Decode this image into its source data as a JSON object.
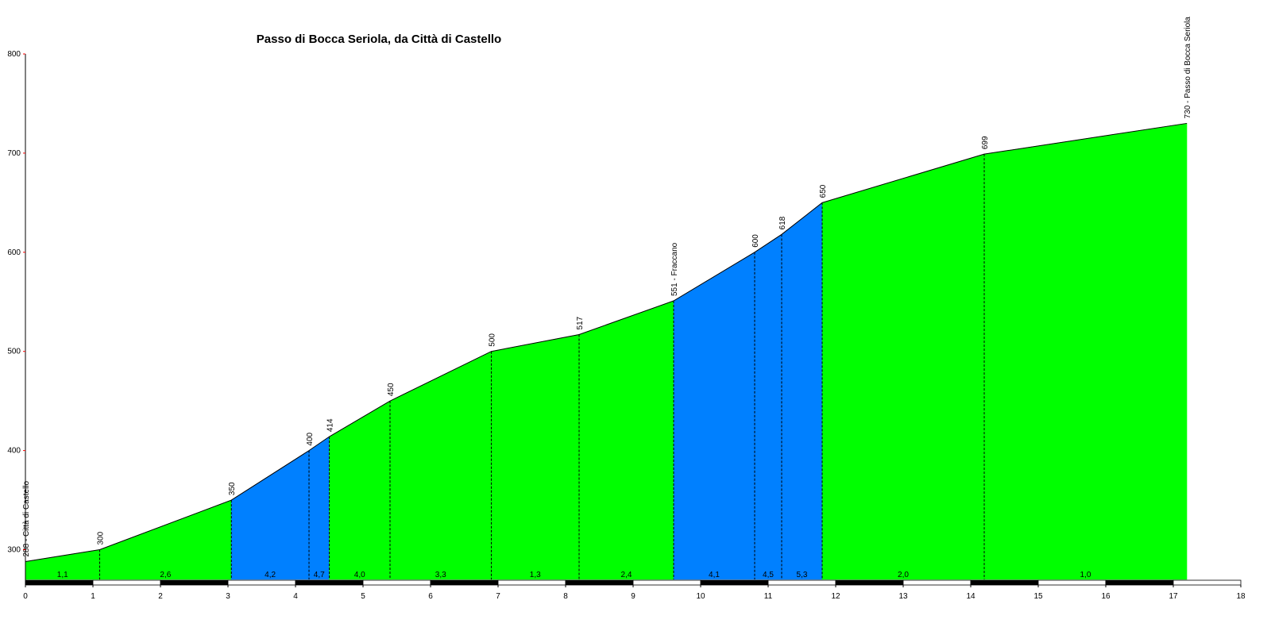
{
  "chart_data": {
    "type": "area",
    "title": "Passo di Bocca Seriola, da Città di Castello",
    "xlabel": "",
    "ylabel": "",
    "xlim": [
      0,
      18
    ],
    "ylim": [
      270,
      800
    ],
    "x_ticks": [
      0,
      1,
      2,
      3,
      4,
      5,
      6,
      7,
      8,
      9,
      10,
      11,
      12,
      13,
      14,
      15,
      16,
      17,
      18
    ],
    "y_ticks": [
      300,
      400,
      500,
      600,
      700,
      800
    ],
    "x_tick_labels": [
      "0",
      "1",
      "2",
      "3",
      "4",
      "5",
      "6",
      "7",
      "8",
      "9",
      "10",
      "11",
      "12",
      "13",
      "14",
      "15",
      "16",
      "17",
      "18"
    ],
    "y_tick_labels": [
      "300",
      "400",
      "500",
      "600",
      "700",
      "800"
    ],
    "points": [
      {
        "x": 0,
        "y": 288,
        "label": "288 - Città di Castello"
      },
      {
        "x": 1.1,
        "y": 300,
        "label": "300"
      },
      {
        "x": 3.05,
        "y": 350,
        "label": "350"
      },
      {
        "x": 4.2,
        "y": 400,
        "label": "400"
      },
      {
        "x": 4.5,
        "y": 414,
        "label": "414"
      },
      {
        "x": 5.4,
        "y": 450,
        "label": "450"
      },
      {
        "x": 6.9,
        "y": 500,
        "label": "500"
      },
      {
        "x": 8.2,
        "y": 517,
        "label": "517"
      },
      {
        "x": 9.6,
        "y": 551,
        "label": "551 - Fraccano"
      },
      {
        "x": 10.8,
        "y": 600,
        "label": "600"
      },
      {
        "x": 11.2,
        "y": 618,
        "label": "618"
      },
      {
        "x": 11.8,
        "y": 650,
        "label": "650"
      },
      {
        "x": 14.2,
        "y": 699,
        "label": "699"
      },
      {
        "x": 17.2,
        "y": 730,
        "label": "730 - Passo di Bocca Seriola"
      }
    ],
    "segment_grades": [
      "1,1",
      "2,6",
      "4,2",
      "4,7",
      "4,0",
      "3,3",
      "1,3",
      "2,4",
      "4,1",
      "4,5",
      "5,3",
      "2,0",
      "1,0"
    ],
    "colors": {
      "moderate": "#00ff00",
      "steep": "#0080ff",
      "outline": "#000000",
      "axis": "#000000",
      "tick": "#ff0000"
    },
    "steep_threshold": 4.1
  }
}
